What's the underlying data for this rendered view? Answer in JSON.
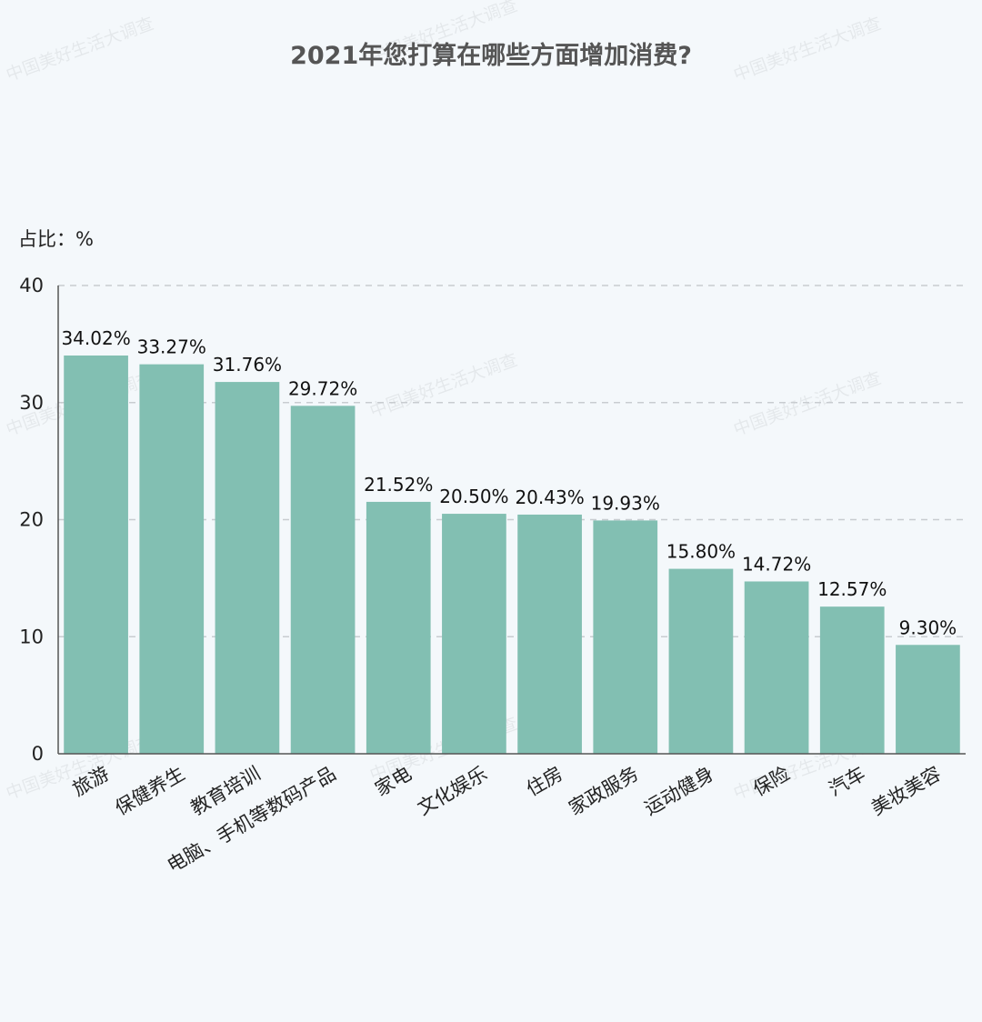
{
  "watermark": "中国美好生活大调查",
  "chart_data": {
    "type": "bar",
    "title": "2021年您打算在哪些方面增加消费?",
    "unit_label": "占比：%",
    "categories": [
      "旅游",
      "保健养生",
      "教育培训",
      "电脑、手机等数码产品",
      "家电",
      "文化娱乐",
      "住房",
      "家政服务",
      "运动健身",
      "保险",
      "汽车",
      "美妆美容"
    ],
    "values": [
      34.02,
      33.27,
      31.76,
      29.72,
      21.52,
      20.5,
      20.43,
      19.93,
      15.8,
      14.72,
      12.57,
      9.3
    ],
    "data_labels": [
      "34.02%",
      "33.27%",
      "31.76%",
      "29.72%",
      "21.52%",
      "20.50%",
      "20.43%",
      "19.93%",
      "15.80%",
      "14.72%",
      "12.57%",
      "9.30%"
    ],
    "y_ticks": [
      "0",
      "10",
      "20",
      "30",
      "40"
    ],
    "ylim": [
      0,
      40
    ],
    "grid": true,
    "bar_color": "#82bfb2",
    "grid_color": "#c8ccd0",
    "axis_color": "#555555"
  }
}
